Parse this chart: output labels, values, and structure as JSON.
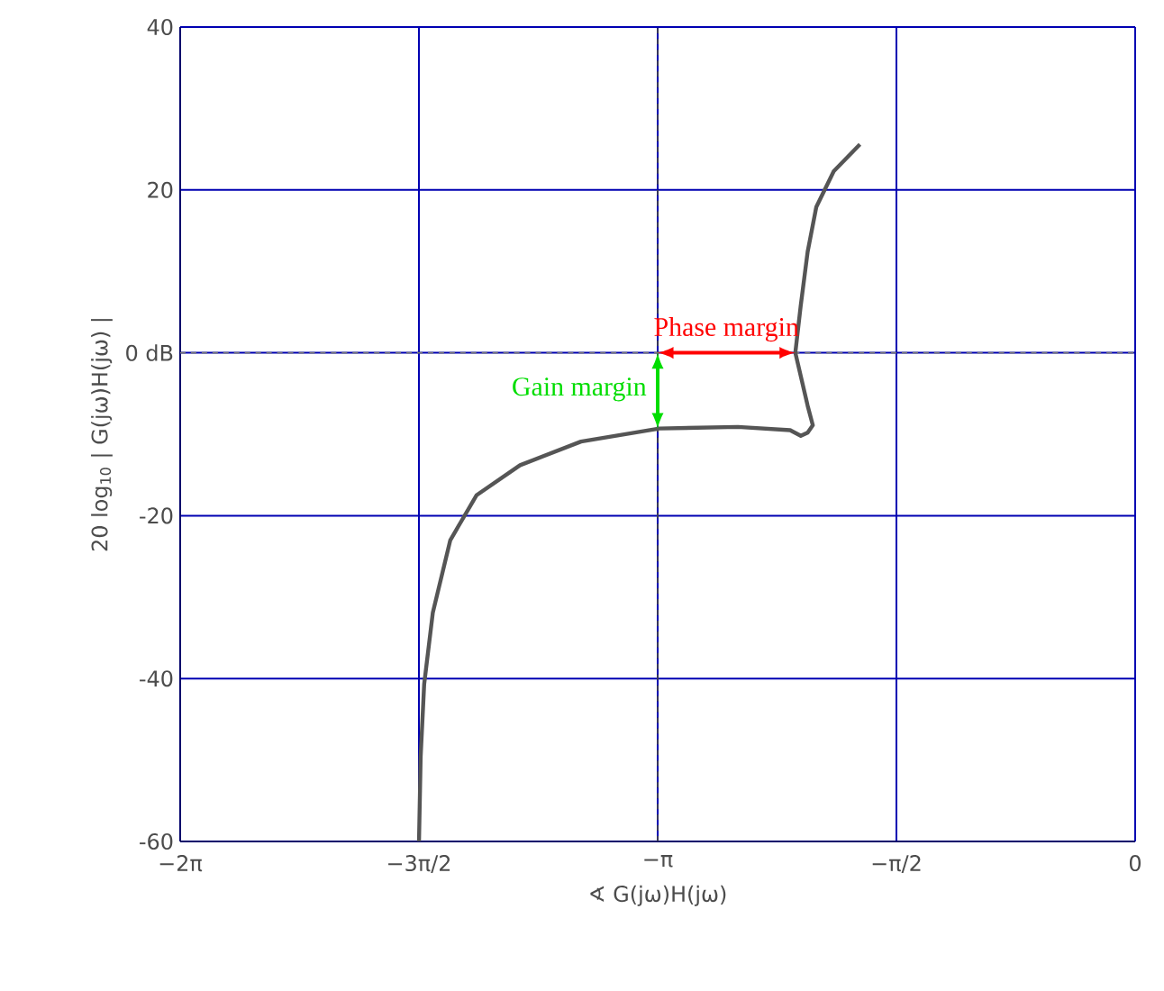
{
  "chart_data": {
    "type": "line",
    "xlabel": "∢ G(jω)H(jω)",
    "ylabel": "20 log$_{10}$ | G(jω)H(jω) |",
    "xlim": [
      -6.2832,
      0
    ],
    "ylim": [
      -60,
      40
    ],
    "xticks": [
      {
        "value": -6.2832,
        "label": "−2π"
      },
      {
        "value": -4.7124,
        "label": "−3π/2"
      },
      {
        "value": -3.1416,
        "label": "−π"
      },
      {
        "value": -1.5708,
        "label": "−π/2"
      },
      0
    ],
    "yticks": [
      -60,
      -40,
      -20,
      {
        "value": 0,
        "label": "0 dB"
      },
      20,
      40
    ],
    "grid": true,
    "series": [
      {
        "color": "#555555",
        "x": [
          -4.712,
          -4.701,
          -4.678,
          -4.621,
          -4.506,
          -4.334,
          -4.047,
          -3.646,
          -3.13,
          -2.614,
          -2.27,
          -2.2,
          -2.155,
          -2.121,
          -2.155,
          -2.236,
          -2.201,
          -2.155,
          -2.098,
          -1.983,
          -1.811
        ],
        "values": [
          -60,
          -49.6,
          -40.7,
          -31.9,
          -23,
          -17.5,
          -13.8,
          -10.9,
          -9.3,
          -9.1,
          -9.5,
          -10.2,
          -9.8,
          -8.9,
          -6.5,
          0,
          5.7,
          12.4,
          17.9,
          22.3,
          25.6
        ]
      }
    ],
    "ref_lines": [
      {
        "axis": "x",
        "value": -3.1416,
        "color": "#444444",
        "line_style": "dashed"
      },
      {
        "axis": "y",
        "value": 0,
        "color": "#777777",
        "line_style": "dashed"
      }
    ],
    "annotations": [
      {
        "text": "Phase margin",
        "x": -2.69,
        "y": 0
      },
      {
        "text": "Gain margin",
        "x": -3.1416,
        "y": -4.5
      }
    ]
  }
}
